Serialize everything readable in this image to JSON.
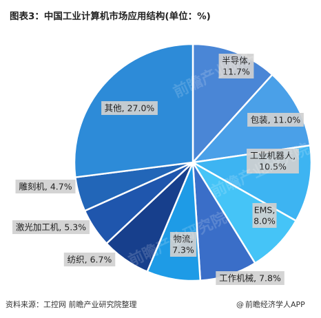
{
  "title": "图表3：中国工业计算机市场应用结构(单位：%)",
  "source": "资料来源：工控网 前瞻产业研究院整理",
  "brand": "前瞻经济学人APP",
  "watermark": "前瞻产业研究院",
  "chart_data": {
    "type": "pie",
    "unit": "%",
    "start_angle_deg": 0,
    "direction": "clockwise",
    "slices": [
      {
        "name": "半导体",
        "value": 11.7,
        "label": "半导体,\n11.7%",
        "color": "#4a86d6"
      },
      {
        "name": "包装",
        "value": 11.0,
        "label": "包装, 11.0%",
        "color": "#4aa0e8"
      },
      {
        "name": "工业机器人",
        "value": 10.5,
        "label": "工业机器人,\n10.5%",
        "color": "#3db4f2"
      },
      {
        "name": "EMS",
        "value": 8.0,
        "label": "EMS,\n8.0%",
        "color": "#45c4f7"
      },
      {
        "name": "工作机械",
        "value": 7.8,
        "label": "工作机械, 7.8%",
        "color": "#3a6ec8"
      },
      {
        "name": "物流",
        "value": 7.3,
        "label": "物流,\n7.3%",
        "color": "#1e9be6"
      },
      {
        "name": "纺织",
        "value": 6.7,
        "label": "纺织, 6.7%",
        "color": "#173f8c"
      },
      {
        "name": "激光加工机",
        "value": 5.3,
        "label": "激光加工机, 5.3%",
        "color": "#1f56ad"
      },
      {
        "name": "雕刻机",
        "value": 4.7,
        "label": "雕刻机, 4.7%",
        "color": "#2266b8"
      },
      {
        "name": "其他",
        "value": 27.0,
        "label": "其他, 27.0%",
        "color": "#2d8bd8"
      }
    ]
  }
}
